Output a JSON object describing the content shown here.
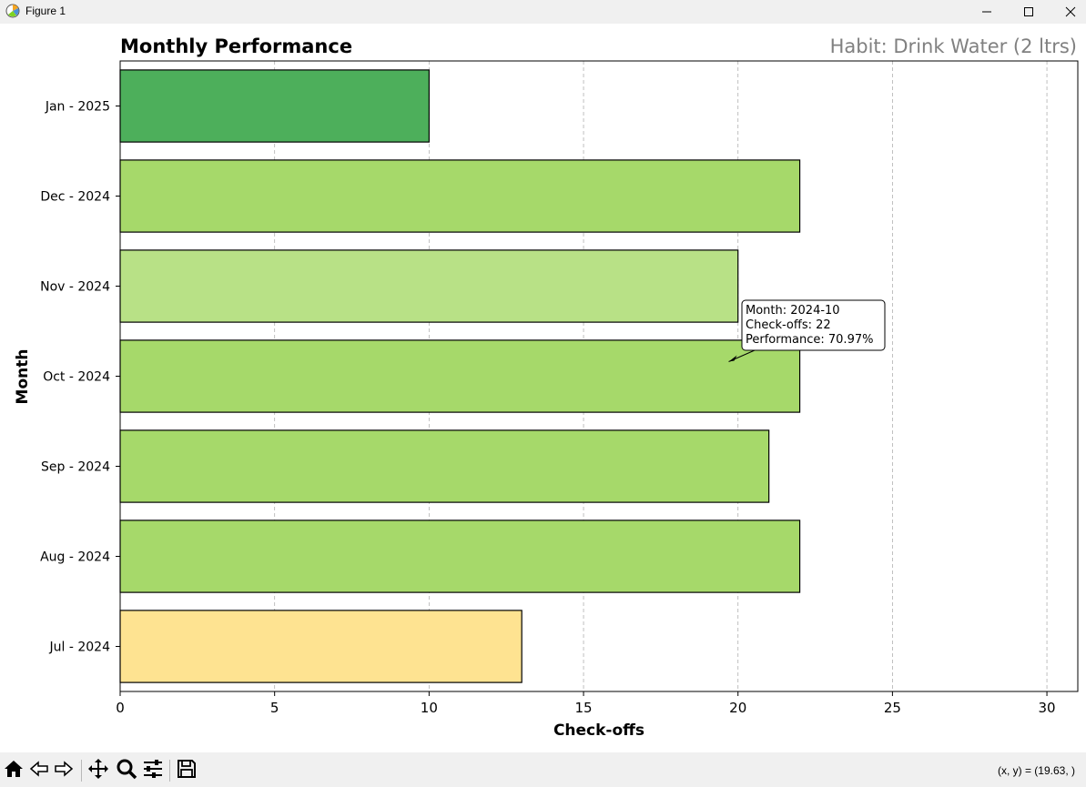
{
  "window": {
    "title": "Figure 1",
    "app_icon": "matplotlib-icon",
    "controls": [
      "minimize-icon",
      "maximize-icon",
      "close-icon"
    ]
  },
  "chart_data": {
    "type": "bar",
    "orientation": "horizontal",
    "title": "Monthly Performance",
    "subtitle": "Habit: Drink Water (2 ltrs)",
    "xlabel": "Check-offs",
    "ylabel": "Month",
    "categories": [
      "Jul - 2024",
      "Aug - 2024",
      "Sep - 2024",
      "Oct - 2024",
      "Nov - 2024",
      "Dec - 2024",
      "Jan - 2025"
    ],
    "values": [
      13,
      22,
      21,
      22,
      20,
      22,
      10
    ],
    "colors": [
      "#fee391",
      "#a6d96a",
      "#a6d96a",
      "#a6d96a",
      "#b8e186",
      "#a6d96a",
      "#4daf5b"
    ],
    "xlim": [
      0,
      31
    ],
    "xticks": [
      0,
      5,
      10,
      15,
      20,
      25,
      30
    ],
    "grid": "x-dashed",
    "annotation": {
      "lines": [
        "Month: 2024-10",
        "Check-offs: 22",
        "Performance: 70.97%"
      ],
      "target_category": "Oct - 2024",
      "target_x": 19.7
    }
  },
  "toolbar": {
    "tools": [
      "home-icon",
      "back-icon",
      "forward-icon",
      "pan-icon",
      "zoom-icon",
      "configure-subplots-icon",
      "save-icon"
    ],
    "coords": "(x, y) = (19.63, )"
  }
}
